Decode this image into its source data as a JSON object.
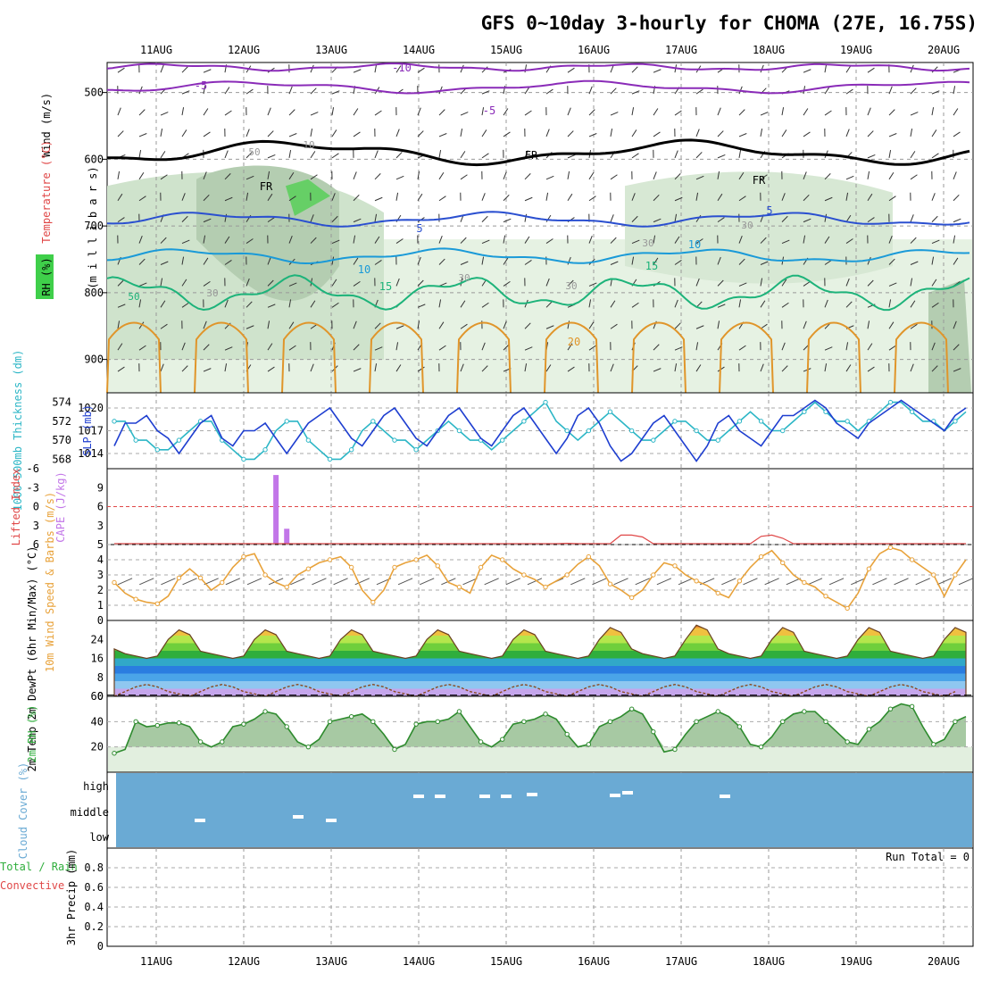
{
  "title": "GFS 0~10day 3-hourly for CHOMA (27E, 16.75S)",
  "dates": [
    "11AUG",
    "12AUG",
    "13AUG",
    "14AUG",
    "15AUG",
    "16AUG",
    "17AUG",
    "18AUG",
    "19AUG",
    "20AUG"
  ],
  "colors": {
    "panel_bg": "#ffffff",
    "grid": "#aaaaaa",
    "slp": "#1f3fd0",
    "thick": "#2cb6c6",
    "lifted": "#e04848",
    "cape": "#c276e8",
    "wind": "#e8a23a",
    "temp_fill": "#2fae3c",
    "rh": "#5cbf5c",
    "cloud": "#6aaad4"
  },
  "panels": {
    "upper": {
      "ylabels": [
        {
          "text": "Wind (m/s)",
          "color": "#000000"
        },
        {
          "text": "Temperature (°C)",
          "color": "#e04848"
        },
        {
          "text": "RH (%)",
          "color": "#2fae3c"
        }
      ],
      "unit_label": "(m i l l i b a r s)",
      "levels": [
        "500",
        "600",
        "700",
        "800",
        "900"
      ],
      "contour_labels": [
        "-10",
        "-5",
        "-5",
        "FR",
        "FR",
        "FR",
        "5",
        "5",
        "10",
        "10",
        "15",
        "15",
        "20",
        "10",
        "30",
        "30",
        "30",
        "30",
        "50",
        "30",
        "50"
      ]
    },
    "slp": {
      "ylabel_left": "1000-500mb Thickness (dm)",
      "ylabel_right": "SLP (mb)",
      "left_ticks": [
        "574",
        "572",
        "570",
        "568"
      ],
      "right_ticks": [
        "1020",
        "1017",
        "1014"
      ]
    },
    "cape": {
      "ylabel_left": "Lifted Index",
      "ylabel_right": "CAPE (J/kg)",
      "left_ticks": [
        "-6",
        "-3",
        "0",
        "3",
        "6"
      ],
      "right_ticks": [
        "9",
        "6",
        "3"
      ]
    },
    "wind10m": {
      "ylabel": "10m Wind Speed & Barbs (m/s)",
      "ticks": [
        "5",
        "4",
        "3",
        "2",
        "1",
        "0"
      ]
    },
    "temp2m": {
      "ylabel": "2m Temp 2m DewPt (6hr Min/Max) (°C)",
      "ticks": [
        "24",
        "16",
        "8",
        "0"
      ]
    },
    "rh2m": {
      "ylabel": "2m RH (%)",
      "ticks": [
        "60",
        "40",
        "20"
      ]
    },
    "cloud": {
      "ylabel": "Cloud Cover (%)",
      "ticks": [
        "high",
        "middle",
        "low"
      ]
    },
    "precip": {
      "ylabel_left": "Total / Rain",
      "ylabel_left2": "Convective",
      "ylabel_right": "3hr Precip (mm)",
      "ticks": [
        "0.8",
        "0.6",
        "0.4",
        "0.2",
        "0"
      ],
      "run_total": "Run Total = 0"
    }
  },
  "chart_data": [
    {
      "type": "line",
      "title": "",
      "series": [
        {
          "name": "SLP (mb)",
          "y_axis": "right",
          "values": [
            1015,
            1018,
            1018,
            1019,
            1017,
            1016,
            1014,
            1016,
            1018,
            1019,
            1016,
            1015,
            1017,
            1017,
            1018,
            1016,
            1014,
            1016,
            1018,
            1019,
            1020,
            1018,
            1016,
            1015,
            1017,
            1019,
            1020,
            1018,
            1016,
            1015,
            1017,
            1019,
            1020,
            1018,
            1016,
            1015,
            1017,
            1019,
            1020,
            1018,
            1016,
            1014,
            1016,
            1019,
            1020,
            1018,
            1015,
            1013,
            1014,
            1016,
            1018,
            1019,
            1017,
            1015,
            1013,
            1015,
            1018,
            1019,
            1017,
            1016,
            1015,
            1017,
            1019,
            1019,
            1020,
            1021,
            1020,
            1018,
            1017,
            1016,
            1018,
            1019,
            1020,
            1021,
            1020,
            1019,
            1018,
            1017,
            1019,
            1020
          ]
        },
        {
          "name": "1000-500mb Thickness (dm)",
          "y_axis": "left",
          "values": [
            572,
            572,
            570,
            570,
            569,
            569,
            570,
            571,
            572,
            572,
            570,
            569,
            568,
            568,
            569,
            571,
            572,
            572,
            570,
            569,
            568,
            568,
            569,
            571,
            572,
            571,
            570,
            570,
            569,
            570,
            571,
            572,
            571,
            570,
            570,
            569,
            570,
            571,
            572,
            573,
            574,
            572,
            571,
            570,
            571,
            572,
            573,
            572,
            571,
            570,
            570,
            571,
            572,
            572,
            571,
            570,
            570,
            571,
            572,
            573,
            572,
            571,
            571,
            572,
            573,
            574,
            573,
            572,
            572,
            571,
            572,
            573,
            574,
            574,
            573,
            572,
            572,
            571,
            572,
            573
          ]
        }
      ],
      "right_ylim": [
        1012,
        1022
      ],
      "left_ylim": [
        567,
        575
      ]
    },
    {
      "type": "bar",
      "title": "",
      "series": [
        {
          "name": "CAPE (J/kg)",
          "x_index": [
            15,
            16
          ],
          "values": [
            11,
            2.5
          ]
        },
        {
          "name": "Lifted Index",
          "values": [
            6,
            6,
            6,
            6,
            6,
            6,
            6,
            6,
            6,
            6,
            6,
            6,
            6,
            6,
            6,
            6,
            6,
            6,
            6,
            6,
            6,
            6,
            6,
            6,
            6,
            6,
            6,
            6,
            6,
            6,
            6,
            6,
            6,
            6,
            6,
            6,
            6,
            6,
            6,
            6,
            6,
            6,
            5.8,
            6,
            6,
            6,
            6,
            4.5,
            4.5,
            4.8,
            6,
            6,
            6,
            6,
            6,
            6,
            6,
            6,
            6,
            6,
            4.7,
            4.5,
            5,
            6,
            6,
            6,
            6,
            6,
            6,
            6,
            6,
            6,
            6,
            6,
            6,
            6,
            6,
            6,
            6,
            6
          ]
        }
      ],
      "li_ylim": [
        -6,
        6
      ],
      "cape_ylim": [
        0,
        12
      ]
    },
    {
      "type": "line",
      "title": "",
      "series": [
        {
          "name": "10m Wind Speed",
          "values": [
            2.5,
            1.8,
            1.4,
            1.2,
            1.1,
            1.6,
            2.8,
            3.4,
            2.8,
            2.0,
            2.5,
            3.5,
            4.2,
            4.4,
            3.0,
            2.5,
            2.2,
            3.0,
            3.4,
            3.8,
            4.0,
            4.2,
            3.5,
            2.0,
            1.2,
            2.0,
            3.5,
            3.8,
            4.0,
            4.3,
            3.6,
            2.5,
            2.2,
            1.8,
            3.5,
            4.3,
            4.0,
            3.4,
            3.0,
            2.7,
            2.2,
            2.6,
            3.0,
            3.7,
            4.2,
            3.6,
            2.4,
            2.0,
            1.5,
            2.0,
            3.0,
            3.8,
            3.6,
            3.0,
            2.6,
            2.3,
            1.8,
            1.5,
            2.6,
            3.5,
            4.2,
            4.6,
            3.8,
            3.0,
            2.5,
            2.2,
            1.6,
            1.2,
            0.8,
            1.8,
            3.4,
            4.4,
            4.8,
            4.6,
            4.0,
            3.5,
            3.0,
            1.6,
            3.0,
            4.0
          ]
        }
      ],
      "ylim": [
        0,
        5
      ]
    },
    {
      "type": "area",
      "title": "",
      "series": [
        {
          "name": "2m Temp",
          "values": [
            20,
            18,
            17,
            16,
            17,
            24,
            28,
            26,
            19,
            18,
            17,
            16,
            17,
            24,
            28,
            26,
            19,
            18,
            17,
            16,
            17,
            24,
            28,
            26,
            19,
            18,
            17,
            16,
            17,
            24,
            28,
            26,
            19,
            18,
            17,
            16,
            17,
            24,
            28,
            26,
            19,
            18,
            17,
            16,
            17,
            24,
            29,
            27,
            20,
            18,
            17,
            16,
            17,
            24,
            30,
            28,
            20,
            18,
            17,
            16,
            17,
            24,
            29,
            27,
            19,
            18,
            17,
            16,
            17,
            24,
            29,
            27,
            19,
            18,
            17,
            16,
            17,
            24,
            29,
            27
          ]
        },
        {
          "name": "2m DewPt",
          "values": [
            -2,
            0,
            2,
            3,
            2,
            0,
            -1,
            -2,
            0,
            2,
            3,
            2,
            0,
            -1,
            -2,
            0,
            2,
            3,
            2,
            0,
            -1,
            -2,
            0,
            2,
            3,
            2,
            0,
            -1,
            -2,
            0,
            2,
            3,
            2,
            0,
            -1,
            -2,
            0,
            2,
            3,
            2,
            0,
            -1,
            -2,
            0,
            2,
            3,
            2,
            0,
            -1,
            -2,
            0,
            2,
            3,
            2,
            0,
            -1,
            -2,
            0,
            2,
            3,
            2,
            0,
            -1,
            -2,
            0,
            2,
            3,
            2,
            0,
            -1,
            -2,
            0,
            2,
            3,
            2,
            0,
            -1,
            -2,
            0
          ]
        }
      ],
      "ylim": [
        0,
        32
      ]
    },
    {
      "type": "area",
      "title": "",
      "series": [
        {
          "name": "2m RH",
          "values": [
            15,
            18,
            40,
            36,
            37,
            39,
            39,
            36,
            24,
            20,
            24,
            36,
            38,
            42,
            48,
            46,
            36,
            24,
            20,
            26,
            40,
            42,
            44,
            46,
            40,
            30,
            18,
            22,
            38,
            40,
            40,
            42,
            48,
            36,
            24,
            20,
            26,
            38,
            40,
            42,
            46,
            42,
            30,
            20,
            22,
            36,
            40,
            44,
            50,
            46,
            32,
            16,
            18,
            30,
            40,
            44,
            48,
            44,
            36,
            22,
            20,
            28,
            40,
            46,
            48,
            48,
            40,
            32,
            24,
            22,
            34,
            40,
            50,
            54,
            52,
            36,
            22,
            26,
            40,
            44
          ]
        }
      ],
      "ylim": [
        0,
        60
      ]
    },
    {
      "type": "heatmap",
      "title": "",
      "series": [
        {
          "name": "Cloud Cover",
          "levels": [
            "high",
            "middle",
            "low"
          ],
          "values": "mostly 100% clear-sky shading"
        }
      ]
    },
    {
      "type": "bar",
      "title": "",
      "series": [
        {
          "name": "3hr Precip (mm)",
          "values": [
            0
          ]
        }
      ],
      "ylim": [
        0,
        1
      ]
    }
  ]
}
